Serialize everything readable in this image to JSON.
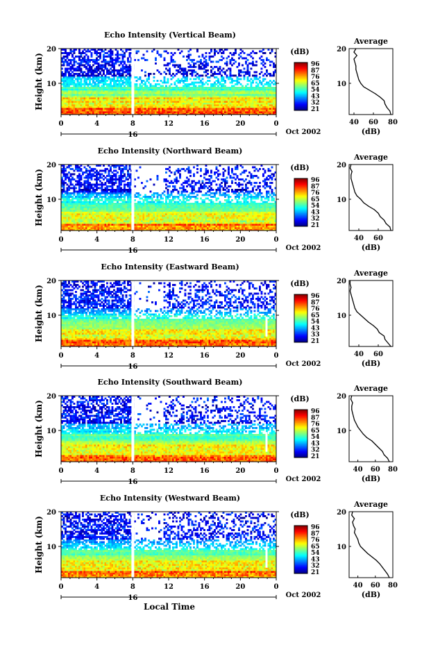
{
  "figure": {
    "xlabel": "Local Time",
    "date_label": "Oct 2002",
    "colorbar_unit": "(dB)",
    "colorbar_ticks": [
      "96",
      "87",
      "76",
      "65",
      "54",
      "43",
      "32",
      "21"
    ],
    "colorbar_ticks_east": [
      "96",
      "87",
      "76",
      "65",
      "54",
      "43",
      "33",
      "21"
    ],
    "avg_title": "Average",
    "avg_xlabel": "(dB)"
  },
  "chart_data": [
    {
      "type": "heatmap",
      "title": "Echo Intensity (Vertical Beam)",
      "ylabel": "Height (km)",
      "xlabel": "",
      "x_ticks": [
        "0",
        "4",
        "8",
        "12",
        "16",
        "20",
        "0"
      ],
      "y_ticks": [
        "20",
        "10"
      ],
      "day_label": "16",
      "xlim": [
        0,
        24
      ],
      "ylim": [
        1,
        20
      ],
      "color_scale_db": [
        21,
        96
      ],
      "average_profile": {
        "title": "Average",
        "xlabel": "(dB)",
        "x_ticks": [
          "40",
          "60",
          "80"
        ],
        "y_ticks": [
          "20",
          "10"
        ],
        "xlim": [
          35,
          80
        ],
        "height_km": [
          1,
          2,
          3,
          4,
          5,
          6,
          7,
          8,
          9,
          10,
          11,
          12,
          13,
          14,
          15,
          16,
          17,
          18,
          19,
          20
        ],
        "db": [
          78,
          77,
          74,
          72,
          71,
          67,
          62,
          56,
          50,
          47,
          45,
          44,
          43,
          42,
          42,
          41,
          40,
          43,
          40,
          42
        ]
      }
    },
    {
      "type": "heatmap",
      "title": "Echo Intensity (Northward Beam)",
      "ylabel": "Height (km)",
      "xlabel": "",
      "x_ticks": [
        "0",
        "4",
        "8",
        "12",
        "16",
        "20",
        "0"
      ],
      "y_ticks": [
        "20",
        "10"
      ],
      "day_label": "16",
      "xlim": [
        0,
        24
      ],
      "ylim": [
        1,
        20
      ],
      "color_scale_db": [
        21,
        96
      ],
      "average_profile": {
        "title": "Average",
        "xlabel": "(dB)",
        "x_ticks": [
          "40",
          "60"
        ],
        "y_ticks": [
          "20",
          "10"
        ],
        "xlim": [
          30,
          75
        ],
        "height_km": [
          1,
          2,
          3,
          4,
          5,
          6,
          7,
          8,
          9,
          10,
          11,
          12,
          13,
          14,
          15,
          16,
          17,
          18,
          19,
          20
        ],
        "db": [
          73,
          72,
          68,
          66,
          62,
          60,
          56,
          50,
          45,
          42,
          38,
          36,
          35,
          34,
          33,
          32,
          32,
          33,
          31,
          32
        ]
      }
    },
    {
      "type": "heatmap",
      "title": "Echo Intensity (Eastward Beam)",
      "ylabel": "Height (km)",
      "xlabel": "",
      "x_ticks": [
        "0",
        "4",
        "8",
        "12",
        "16",
        "20",
        "0"
      ],
      "y_ticks": [
        "20",
        "10"
      ],
      "day_label": "16",
      "xlim": [
        0,
        24
      ],
      "ylim": [
        1,
        20
      ],
      "color_scale_db": [
        21,
        96
      ],
      "average_profile": {
        "title": "Average",
        "xlabel": "(dB)",
        "x_ticks": [
          "40",
          "60"
        ],
        "y_ticks": [
          "20",
          "10"
        ],
        "xlim": [
          30,
          75
        ],
        "height_km": [
          1,
          2,
          3,
          4,
          5,
          6,
          7,
          8,
          9,
          10,
          11,
          12,
          13,
          14,
          15,
          16,
          17,
          18,
          19,
          20
        ],
        "db": [
          73,
          70,
          67,
          66,
          61,
          59,
          55,
          50,
          46,
          42,
          38,
          36,
          35,
          34,
          33,
          32,
          31,
          32,
          31,
          31
        ]
      }
    },
    {
      "type": "heatmap",
      "title": "Echo Intensity (Southward Beam)",
      "ylabel": "Height (km)",
      "xlabel": "",
      "x_ticks": [
        "0",
        "4",
        "8",
        "12",
        "16",
        "20",
        "0"
      ],
      "y_ticks": [
        "20",
        "10"
      ],
      "day_label": "16",
      "xlim": [
        0,
        24
      ],
      "ylim": [
        1,
        20
      ],
      "color_scale_db": [
        21,
        96
      ],
      "average_profile": {
        "title": "Average",
        "xlabel": "(dB)",
        "x_ticks": [
          "40",
          "60",
          "80"
        ],
        "y_ticks": [
          "20",
          "10"
        ],
        "xlim": [
          30,
          80
        ],
        "height_km": [
          1,
          2,
          3,
          4,
          5,
          6,
          7,
          8,
          9,
          10,
          11,
          12,
          13,
          14,
          15,
          16,
          17,
          18,
          19,
          20
        ],
        "db": [
          76,
          74,
          70,
          68,
          64,
          60,
          56,
          50,
          46,
          43,
          40,
          38,
          36,
          35,
          34,
          33,
          33,
          34,
          32,
          33
        ]
      }
    },
    {
      "type": "heatmap",
      "title": "Echo Intensity (Westward Beam)",
      "ylabel": "Height (km)",
      "xlabel": "Local Time",
      "x_ticks": [
        "0",
        "4",
        "8",
        "12",
        "16",
        "20",
        "0"
      ],
      "y_ticks": [
        "20",
        "10"
      ],
      "day_label": "16",
      "xlim": [
        0,
        24
      ],
      "ylim": [
        1,
        20
      ],
      "color_scale_db": [
        21,
        96
      ],
      "average_profile": {
        "title": "Average",
        "xlabel": "(dB)",
        "x_ticks": [
          "40",
          "60",
          "80"
        ],
        "y_ticks": [
          "20",
          "10"
        ],
        "xlim": [
          30,
          80
        ],
        "height_km": [
          1,
          2,
          3,
          4,
          5,
          6,
          7,
          8,
          9,
          10,
          11,
          12,
          13,
          14,
          15,
          16,
          17,
          18,
          19,
          20
        ],
        "db": [
          76,
          74,
          71,
          68,
          65,
          61,
          56,
          51,
          47,
          43,
          41,
          40,
          38,
          36,
          37,
          35,
          34,
          36,
          33,
          34
        ]
      }
    }
  ]
}
